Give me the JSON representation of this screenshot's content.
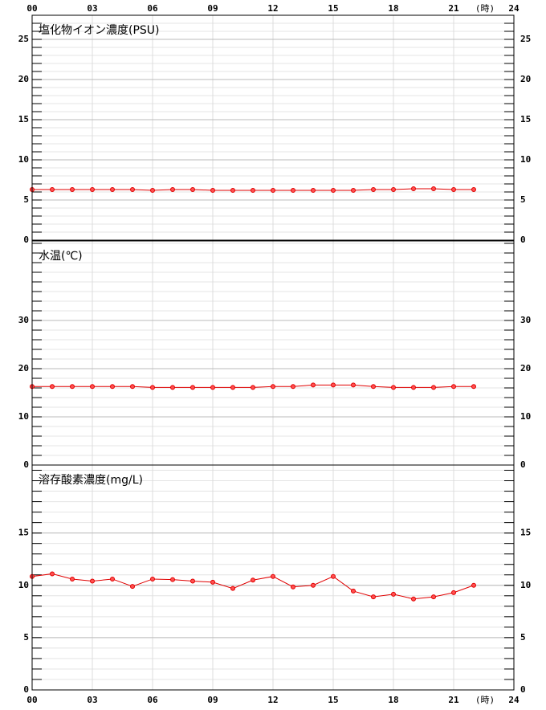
{
  "chart_data": [
    {
      "type": "line",
      "title": "塩化物イオン濃度(PSU)",
      "x_axis": "top",
      "x_label": "(時)",
      "x": [
        0,
        1,
        2,
        3,
        4,
        5,
        6,
        7,
        8,
        9,
        10,
        11,
        12,
        13,
        14,
        15,
        16,
        17,
        18,
        19,
        20,
        21,
        22
      ],
      "xlim": [
        0,
        24
      ],
      "xticks": [
        {
          "value": 0,
          "label": "00"
        },
        {
          "value": 3,
          "label": "03"
        },
        {
          "value": 6,
          "label": "06"
        },
        {
          "value": 9,
          "label": "09"
        },
        12,
        15,
        18,
        21,
        24
      ],
      "ylim": [
        0,
        28
      ],
      "yticks": [
        0,
        5,
        10,
        15,
        20,
        25
      ],
      "minor_tick_step": 1,
      "grid": true,
      "series": [
        {
          "color": "#e00000",
          "values": [
            6.3,
            6.3,
            6.3,
            6.3,
            6.3,
            6.3,
            6.2,
            6.3,
            6.3,
            6.2,
            6.2,
            6.2,
            6.2,
            6.2,
            6.2,
            6.2,
            6.2,
            6.3,
            6.3,
            6.4,
            6.4,
            6.3,
            6.3
          ]
        }
      ]
    },
    {
      "type": "line",
      "title": "水温(℃)",
      "x": [
        0,
        1,
        2,
        3,
        4,
        5,
        6,
        7,
        8,
        9,
        10,
        11,
        12,
        13,
        14,
        15,
        16,
        17,
        18,
        19,
        20,
        21,
        22
      ],
      "xlim": [
        0,
        24
      ],
      "xticks": [
        {
          "value": 0,
          "label": "00"
        },
        {
          "value": 3,
          "label": "03"
        },
        {
          "value": 6,
          "label": "06"
        },
        {
          "value": 9,
          "label": "09"
        },
        12,
        15,
        18,
        21,
        24
      ],
      "ylim": [
        0,
        46.5
      ],
      "yticks": [
        0,
        10,
        20,
        30
      ],
      "minor_tick_step": 2,
      "grid": true,
      "series": [
        {
          "color": "#e00000",
          "values": [
            16.3,
            16.3,
            16.3,
            16.3,
            16.3,
            16.3,
            16.1,
            16.1,
            16.1,
            16.1,
            16.1,
            16.1,
            16.3,
            16.3,
            16.6,
            16.6,
            16.6,
            16.3,
            16.1,
            16.1,
            16.1,
            16.3,
            16.3
          ]
        }
      ]
    },
    {
      "type": "line",
      "title": "溶存酸素濃度(mg/L)",
      "x_axis": "bottom",
      "x_label": "(時)",
      "x": [
        0,
        1,
        2,
        3,
        4,
        5,
        6,
        7,
        8,
        9,
        10,
        11,
        12,
        13,
        14,
        15,
        16,
        17,
        18,
        19,
        20,
        21,
        22
      ],
      "xlim": [
        0,
        24
      ],
      "xticks": [
        {
          "value": 0,
          "label": "00"
        },
        {
          "value": 3,
          "label": "03"
        },
        {
          "value": 6,
          "label": "06"
        },
        {
          "value": 9,
          "label": "09"
        },
        12,
        15,
        18,
        21,
        24
      ],
      "ylim": [
        0,
        21.5
      ],
      "yticks": [
        0,
        5,
        10,
        15
      ],
      "minor_tick_step": 1,
      "grid": true,
      "series": [
        {
          "color": "#e00000",
          "values": [
            10.85,
            11.1,
            10.6,
            10.4,
            10.6,
            9.9,
            10.6,
            10.55,
            10.4,
            10.3,
            9.7,
            10.5,
            10.85,
            9.85,
            10.0,
            10.85,
            9.45,
            8.9,
            9.15,
            8.7,
            8.9,
            9.3,
            10.0
          ]
        }
      ]
    }
  ]
}
